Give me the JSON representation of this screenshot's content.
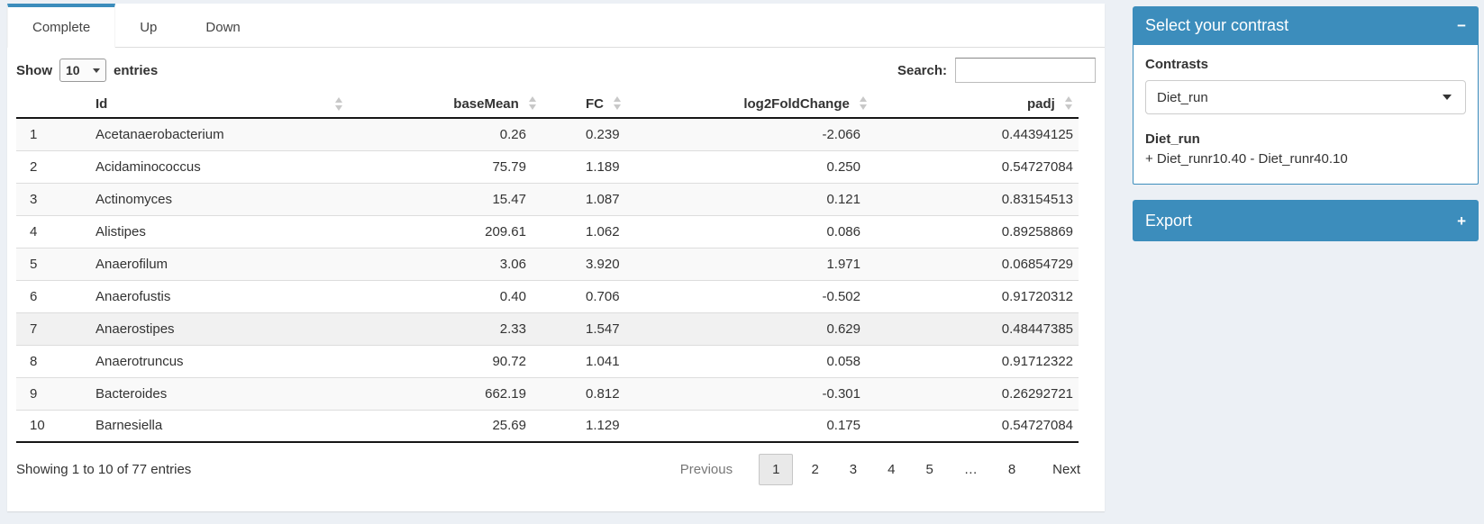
{
  "tabs": [
    {
      "label": "Complete",
      "active": true
    },
    {
      "label": "Up",
      "active": false
    },
    {
      "label": "Down",
      "active": false
    }
  ],
  "length_control": {
    "prefix": "Show",
    "value": "10",
    "suffix": "entries"
  },
  "search": {
    "label": "Search:",
    "value": ""
  },
  "table": {
    "columns": [
      {
        "label": ""
      },
      {
        "label": "Id"
      },
      {
        "label": "baseMean"
      },
      {
        "label": "FC"
      },
      {
        "label": "log2FoldChange"
      },
      {
        "label": "padj"
      }
    ],
    "rows": [
      {
        "num": "1",
        "id": "Acetanaerobacterium",
        "baseMean": "0.26",
        "fc": "0.239",
        "log2fc": "-2.066",
        "padj": "0.44394125"
      },
      {
        "num": "2",
        "id": "Acidaminococcus",
        "baseMean": "75.79",
        "fc": "1.189",
        "log2fc": "0.250",
        "padj": "0.54727084"
      },
      {
        "num": "3",
        "id": "Actinomyces",
        "baseMean": "15.47",
        "fc": "1.087",
        "log2fc": "0.121",
        "padj": "0.83154513"
      },
      {
        "num": "4",
        "id": "Alistipes",
        "baseMean": "209.61",
        "fc": "1.062",
        "log2fc": "0.086",
        "padj": "0.89258869"
      },
      {
        "num": "5",
        "id": "Anaerofilum",
        "baseMean": "3.06",
        "fc": "3.920",
        "log2fc": "1.971",
        "padj": "0.06854729"
      },
      {
        "num": "6",
        "id": "Anaerofustis",
        "baseMean": "0.40",
        "fc": "0.706",
        "log2fc": "-0.502",
        "padj": "0.91720312"
      },
      {
        "num": "7",
        "id": "Anaerostipes",
        "baseMean": "2.33",
        "fc": "1.547",
        "log2fc": "0.629",
        "padj": "0.48447385"
      },
      {
        "num": "8",
        "id": "Anaerotruncus",
        "baseMean": "90.72",
        "fc": "1.041",
        "log2fc": "0.058",
        "padj": "0.91712322"
      },
      {
        "num": "9",
        "id": "Bacteroides",
        "baseMean": "662.19",
        "fc": "0.812",
        "log2fc": "-0.301",
        "padj": "0.26292721"
      },
      {
        "num": "10",
        "id": "Barnesiella",
        "baseMean": "25.69",
        "fc": "1.129",
        "log2fc": "0.175",
        "padj": "0.54727084"
      }
    ]
  },
  "footer": {
    "info": "Showing 1 to 10 of 77 entries",
    "pagination": {
      "previous": "Previous",
      "pages": [
        "1",
        "2",
        "3",
        "4",
        "5",
        "…",
        "8"
      ],
      "current": "1",
      "next": "Next"
    }
  },
  "contrast_panel": {
    "title": "Select your contrast",
    "collapse_icon": "−",
    "contrasts_label": "Contrasts",
    "selected_contrast": "Diet_run",
    "description_title": "Diet_run",
    "description_formula": "+ Diet_runr10.40 - Diet_runr40.10"
  },
  "export_panel": {
    "title": "Export",
    "expand_icon": "+"
  },
  "colors": {
    "primary": "#3c8dbc",
    "page_bg": "#ecf0f5"
  }
}
